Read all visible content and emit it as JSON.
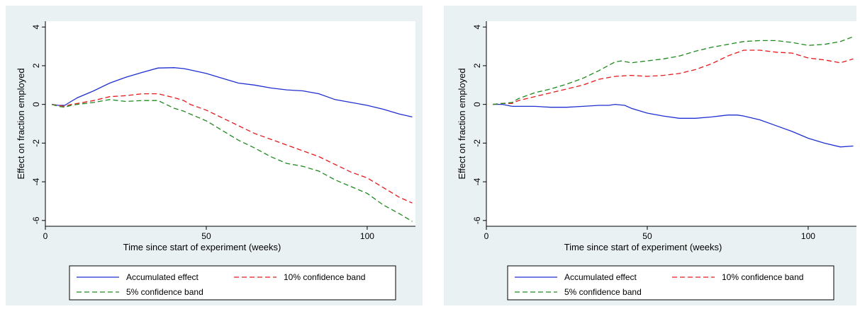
{
  "colors": {
    "panel_bg": "#eaf1f3",
    "plot_bg": "#ffffff",
    "axis": "#000000",
    "legend_border": "#000000"
  },
  "chart_data": [
    {
      "type": "line",
      "ylabel": "Effect on fraction employed",
      "xlabel": "Time since start of experiment (weeks)",
      "xlim": [
        0,
        115
      ],
      "ylim": [
        -6.3,
        4.3
      ],
      "xticks": [
        0,
        50,
        100
      ],
      "xtick_labels": [
        "0",
        "50",
        "100"
      ],
      "yticks": [
        -6,
        -4,
        -2,
        0,
        2,
        4
      ],
      "ytick_labels": [
        "-6",
        "-4",
        "-2",
        "0",
        "2",
        "4"
      ],
      "legend_position": "bottom",
      "series": [
        {
          "name": "Accumulated effect",
          "color": "#1f2fd1",
          "dash": "solid",
          "x": [
            2,
            4,
            6,
            8,
            10,
            15,
            20,
            25,
            30,
            35,
            40,
            43,
            45,
            50,
            55,
            60,
            65,
            70,
            75,
            80,
            85,
            90,
            95,
            100,
            105,
            110,
            114
          ],
          "y": [
            0,
            -0.05,
            -0.05,
            0.15,
            0.35,
            0.7,
            1.1,
            1.4,
            1.65,
            1.88,
            1.9,
            1.85,
            1.78,
            1.6,
            1.35,
            1.1,
            1.0,
            0.85,
            0.75,
            0.7,
            0.55,
            0.25,
            0.1,
            -0.05,
            -0.25,
            -0.5,
            -0.65
          ]
        },
        {
          "name": "10% confidence band",
          "color": "#e41a1c",
          "dash": "dashed",
          "x": [
            2,
            4,
            6,
            8,
            10,
            15,
            20,
            25,
            30,
            35,
            40,
            43,
            45,
            50,
            55,
            60,
            65,
            70,
            75,
            80,
            85,
            90,
            95,
            100,
            105,
            110,
            114
          ],
          "y": [
            0,
            -0.05,
            -0.1,
            0.0,
            0.05,
            0.2,
            0.4,
            0.45,
            0.55,
            0.55,
            0.35,
            0.2,
            0.0,
            -0.3,
            -0.7,
            -1.1,
            -1.5,
            -1.8,
            -2.1,
            -2.4,
            -2.7,
            -3.1,
            -3.5,
            -3.8,
            -4.3,
            -4.8,
            -5.1
          ]
        },
        {
          "name": "5% confidence band",
          "color": "#1e8a1e",
          "dash": "dashed",
          "x": [
            2,
            4,
            6,
            8,
            10,
            15,
            20,
            25,
            30,
            35,
            40,
            43,
            45,
            50,
            55,
            60,
            65,
            70,
            75,
            80,
            85,
            90,
            95,
            100,
            105,
            110,
            114
          ],
          "y": [
            0,
            -0.1,
            -0.15,
            -0.05,
            0.0,
            0.1,
            0.25,
            0.15,
            0.2,
            0.2,
            -0.2,
            -0.35,
            -0.5,
            -0.85,
            -1.35,
            -1.85,
            -2.25,
            -2.7,
            -3.05,
            -3.2,
            -3.45,
            -3.9,
            -4.25,
            -4.6,
            -5.2,
            -5.65,
            -6.05
          ]
        }
      ]
    },
    {
      "type": "line",
      "ylabel": "Effect on fraction employed",
      "xlabel": "Time since start of experiment (weeks)",
      "xlim": [
        0,
        115
      ],
      "ylim": [
        -6.3,
        4.3
      ],
      "xticks": [
        0,
        50,
        100
      ],
      "xtick_labels": [
        "0",
        "50",
        "100"
      ],
      "yticks": [
        -6,
        -4,
        -2,
        0,
        2,
        4
      ],
      "ytick_labels": [
        "-6",
        "-4",
        "-2",
        "0",
        "2",
        "4"
      ],
      "legend_position": "bottom",
      "series": [
        {
          "name": "Accumulated effect",
          "color": "#1f2fd1",
          "dash": "solid",
          "x": [
            2,
            5,
            8,
            10,
            15,
            20,
            25,
            30,
            35,
            38,
            40,
            43,
            45,
            50,
            55,
            60,
            65,
            70,
            75,
            78,
            80,
            85,
            90,
            95,
            100,
            105,
            110,
            114
          ],
          "y": [
            0,
            0,
            -0.1,
            -0.1,
            -0.1,
            -0.15,
            -0.15,
            -0.1,
            -0.05,
            -0.05,
            0.0,
            -0.05,
            -0.2,
            -0.45,
            -0.6,
            -0.72,
            -0.72,
            -0.65,
            -0.55,
            -0.55,
            -0.6,
            -0.8,
            -1.1,
            -1.4,
            -1.75,
            -2.0,
            -2.2,
            -2.15
          ]
        },
        {
          "name": "10% confidence band",
          "color": "#e41a1c",
          "dash": "dashed",
          "x": [
            2,
            5,
            8,
            10,
            15,
            20,
            25,
            30,
            35,
            40,
            45,
            50,
            55,
            60,
            65,
            70,
            75,
            80,
            85,
            90,
            95,
            100,
            105,
            110,
            114
          ],
          "y": [
            0,
            0.05,
            0.05,
            0.2,
            0.4,
            0.6,
            0.8,
            1.0,
            1.3,
            1.45,
            1.5,
            1.45,
            1.5,
            1.6,
            1.8,
            2.1,
            2.5,
            2.8,
            2.8,
            2.7,
            2.65,
            2.4,
            2.3,
            2.15,
            2.35
          ]
        },
        {
          "name": "5% confidence band",
          "color": "#1e8a1e",
          "dash": "dashed",
          "x": [
            2,
            5,
            8,
            10,
            15,
            20,
            25,
            30,
            35,
            40,
            42,
            45,
            50,
            55,
            60,
            65,
            70,
            75,
            80,
            85,
            90,
            95,
            100,
            105,
            110,
            114
          ],
          "y": [
            0,
            0.05,
            0.1,
            0.3,
            0.6,
            0.8,
            1.05,
            1.35,
            1.75,
            2.2,
            2.25,
            2.15,
            2.25,
            2.35,
            2.5,
            2.75,
            2.95,
            3.1,
            3.25,
            3.3,
            3.3,
            3.2,
            3.05,
            3.1,
            3.25,
            3.5
          ]
        }
      ]
    }
  ]
}
